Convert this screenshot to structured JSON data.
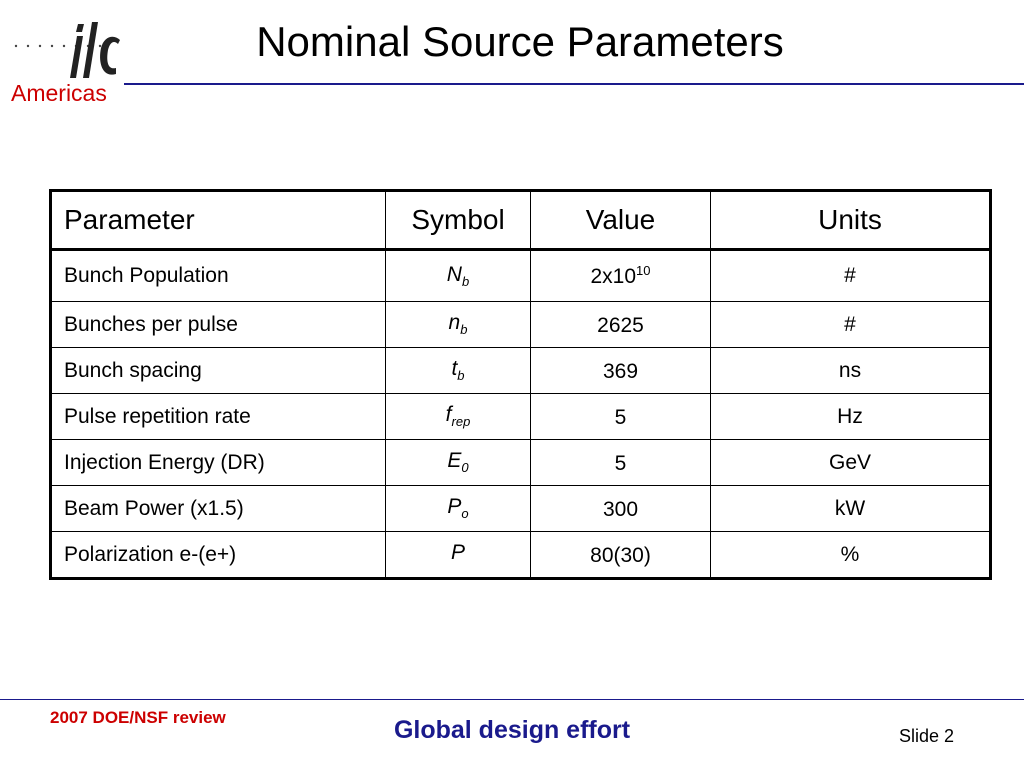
{
  "logo": {
    "mark_text": "ilc",
    "caption": "Americas"
  },
  "slide": {
    "title": "Nominal Source Parameters"
  },
  "table": {
    "headers": [
      "Parameter",
      "Symbol",
      "Value",
      "Units"
    ],
    "rows": [
      {
        "parameter": "Bunch Population",
        "symbol": "N",
        "symbol_sub": "b",
        "value": "2x10",
        "value_sup": "10",
        "units": "#"
      },
      {
        "parameter": "Bunches per pulse",
        "symbol": "n",
        "symbol_sub": "b",
        "value": "2625",
        "value_sup": "",
        "units": "#"
      },
      {
        "parameter": "Bunch spacing",
        "symbol": "t",
        "symbol_sub": "b",
        "value": "369",
        "value_sup": "",
        "units": "ns"
      },
      {
        "parameter": "Pulse repetition rate",
        "symbol": "f",
        "symbol_sub": "rep",
        "value": "5",
        "value_sup": "",
        "units": "Hz"
      },
      {
        "parameter": "Injection Energy (DR)",
        "symbol": "E",
        "symbol_sub": "0",
        "value": "5",
        "value_sup": "",
        "units": "GeV"
      },
      {
        "parameter": "Beam Power (x1.5)",
        "symbol": "P",
        "symbol_sub": "o",
        "value": "300",
        "value_sup": "",
        "units": "kW"
      },
      {
        "parameter": "Polarization e-(e+)",
        "symbol": "P",
        "symbol_sub": "",
        "value": "80(30)",
        "value_sup": "",
        "units": "%"
      }
    ]
  },
  "footer": {
    "left": "2007 DOE/NSF review",
    "center": "Global design effort",
    "right": "Slide 2"
  },
  "colors": {
    "brand_red": "#cc0000",
    "brand_blue": "#1a1a8c"
  }
}
